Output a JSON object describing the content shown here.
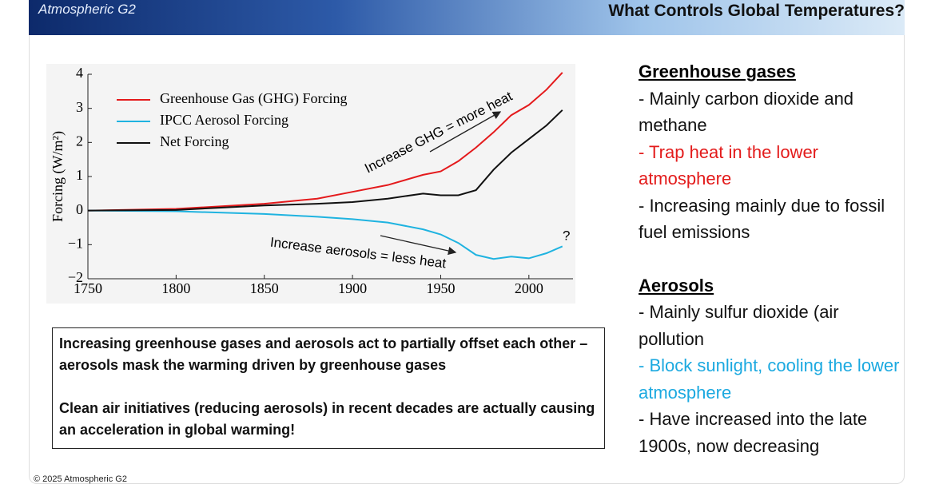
{
  "header": {
    "logo": "Atmospheric G2",
    "title": "What Controls Global Temperatures?"
  },
  "chart_data": {
    "type": "line",
    "y_label": "Forcing (W/m²)",
    "x": [
      1750,
      1800,
      1850,
      1880,
      1900,
      1920,
      1940,
      1950,
      1960,
      1970,
      1980,
      1990,
      2000,
      2010,
      2019
    ],
    "series": [
      {
        "name": "Greenhouse Gas (GHG) Forcing",
        "color": "#e41a1c",
        "values": [
          0,
          0.05,
          0.2,
          0.35,
          0.55,
          0.75,
          1.05,
          1.15,
          1.45,
          1.85,
          2.3,
          2.8,
          3.1,
          3.55,
          4.05
        ]
      },
      {
        "name": "IPCC Aerosol Forcing",
        "color": "#1fb3e0",
        "values": [
          0,
          -0.02,
          -0.1,
          -0.18,
          -0.25,
          -0.35,
          -0.55,
          -0.7,
          -0.95,
          -1.3,
          -1.42,
          -1.35,
          -1.4,
          -1.25,
          -1.05
        ]
      },
      {
        "name": "Net Forcing",
        "color": "#111111",
        "values": [
          0,
          0.02,
          0.15,
          0.2,
          0.25,
          0.35,
          0.5,
          0.45,
          0.45,
          0.6,
          1.2,
          1.7,
          2.1,
          2.5,
          2.95
        ]
      }
    ],
    "xlim": [
      1750,
      2025
    ],
    "ylim": [
      -2,
      4
    ],
    "xticks": [
      1750,
      1800,
      1850,
      1900,
      1950,
      2000
    ],
    "yticks": [
      {
        "value": -2,
        "label": "−2"
      },
      {
        "value": -1,
        "label": "−1"
      },
      0,
      1,
      2,
      3,
      4
    ],
    "annotations": [
      "Increase GHG = more heat",
      "Increase aerosols = less heat",
      "?"
    ],
    "grid": false
  },
  "note": [
    "Increasing greenhouse gases and aerosols act to partially offset each other – aerosols mask the warming driven by greenhouse gases",
    "Clean air initiatives (reducing aerosols) in recent decades are actually causing an acceleration in global warming!"
  ],
  "sections": [
    {
      "heading": "Greenhouse gases",
      "items": [
        {
          "text": "- Mainly carbon dioxide and methane",
          "color": "#111111"
        },
        {
          "text": "- Trap heat in the lower atmosphere",
          "color": "#e31b1b"
        },
        {
          "text": "- Increasing mainly due to fossil fuel emissions",
          "color": "#111111"
        }
      ]
    },
    {
      "heading": "Aerosols",
      "items": [
        {
          "text": "- Mainly sulfur dioxide (air pollution",
          "color": "#111111"
        },
        {
          "text": "- Block sunlight, cooling the lower atmosphere",
          "color": "#1ba9e0"
        },
        {
          "text": "- Have increased into the late 1900s, now decreasing",
          "color": "#111111"
        }
      ]
    }
  ],
  "footer": "© 2025 Atmospheric G2"
}
